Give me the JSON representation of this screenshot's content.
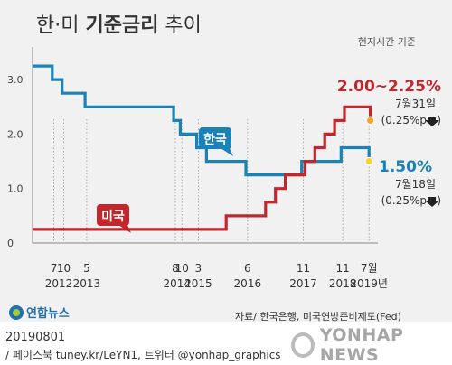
{
  "title_light_1": "한·미 ",
  "title_bold": "기준금리",
  "title_light_2": " 추이",
  "timezone_note": "현지시간 기준",
  "source": "자료/ 한국은행, 미국연방준비제도(Fed)",
  "logo_text": "연합뉴스",
  "date": "20190801",
  "credits": "/ 페이스북 tuney.kr/LeYN1, 트위터 @yonhap_graphics",
  "watermark": "YONHAP NEWS",
  "colors": {
    "korea": "#1a82b6",
    "us": "#c1272d",
    "korea_dot": "#f7d633",
    "us_dot": "#f4a42d"
  },
  "chart_data": {
    "type": "line",
    "ylim": [
      0,
      3.5
    ],
    "y_ticks": [
      {
        "v": 0,
        "label": "0"
      },
      {
        "v": 1.0,
        "label": "1.0"
      },
      {
        "v": 2.0,
        "label": "2.0"
      },
      {
        "v": 3.0,
        "label": "3.0"
      }
    ],
    "x_month_ticks": [
      {
        "label": "7",
        "m": 6.5
      },
      {
        "label": "10",
        "m": 9.5
      },
      {
        "label": "5",
        "m": 16.5
      },
      {
        "label": "8",
        "m": 43.5
      },
      {
        "label": "10",
        "m": 45.5
      },
      {
        "label": "3",
        "m": 50.5
      },
      {
        "label": "6",
        "m": 65.5
      },
      {
        "label": "11",
        "m": 82.5
      },
      {
        "label": "11",
        "m": 94.5
      },
      {
        "label": "7월",
        "m": 102.5
      }
    ],
    "x_year_ticks": [
      {
        "label": "2012",
        "m": 8
      },
      {
        "label": "2013",
        "m": 16.5
      },
      {
        "label": "2014",
        "m": 44
      },
      {
        "label": "2015",
        "m": 50.5
      },
      {
        "label": "2016",
        "m": 65.5
      },
      {
        "label": "2017",
        "m": 82.5
      },
      {
        "label": "2018",
        "m": 94.5
      },
      {
        "label": "2019년",
        "m": 102.5
      }
    ],
    "series": [
      {
        "name": "한국",
        "data": [
          [
            0,
            3.25
          ],
          [
            6,
            3.25
          ],
          [
            6,
            3.0
          ],
          [
            9,
            3.0
          ],
          [
            9,
            2.75
          ],
          [
            16,
            2.75
          ],
          [
            16,
            2.5
          ],
          [
            43,
            2.5
          ],
          [
            43,
            2.25
          ],
          [
            45,
            2.25
          ],
          [
            45,
            2.0
          ],
          [
            50,
            2.0
          ],
          [
            50,
            1.75
          ],
          [
            53,
            1.75
          ],
          [
            53,
            1.5
          ],
          [
            65,
            1.5
          ],
          [
            65,
            1.25
          ],
          [
            82,
            1.25
          ],
          [
            82,
            1.5
          ],
          [
            94,
            1.5
          ],
          [
            94,
            1.75
          ],
          [
            102.5,
            1.75
          ],
          [
            102.5,
            1.5
          ]
        ],
        "end_label": "1.50%",
        "end_date": "7월18일",
        "end_change": "(0.25%p"
      },
      {
        "name": "미국",
        "data": [
          [
            0,
            0.25
          ],
          [
            59,
            0.25
          ],
          [
            59,
            0.5
          ],
          [
            71,
            0.5
          ],
          [
            71,
            0.75
          ],
          [
            74,
            0.75
          ],
          [
            74,
            1.0
          ],
          [
            77,
            1.0
          ],
          [
            77,
            1.25
          ],
          [
            83,
            1.25
          ],
          [
            83,
            1.5
          ],
          [
            86,
            1.5
          ],
          [
            86,
            1.75
          ],
          [
            89,
            1.75
          ],
          [
            89,
            2.0
          ],
          [
            92,
            2.0
          ],
          [
            92,
            2.25
          ],
          [
            95,
            2.25
          ],
          [
            95,
            2.5
          ],
          [
            102.9,
            2.5
          ],
          [
            102.9,
            2.25
          ]
        ],
        "end_label": "2.00~2.25%",
        "end_date": "7월31일",
        "end_change": "(0.25%p"
      }
    ]
  }
}
